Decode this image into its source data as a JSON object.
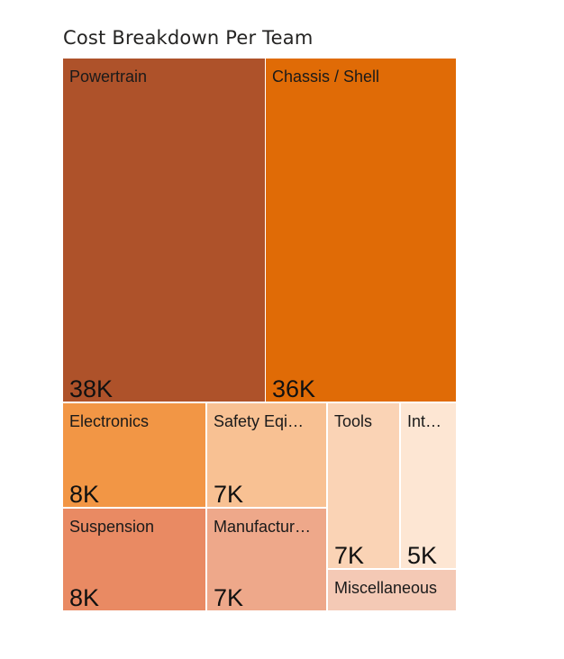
{
  "chart_data": {
    "type": "treemap",
    "title": "Cost Breakdown Per Team",
    "items": [
      {
        "name": "Powertrain",
        "label": "Powertrain",
        "value": 38000,
        "value_label": "38K",
        "color": "#ae522a"
      },
      {
        "name": "Chassis / Shell",
        "label": "Chassis / Shell",
        "value": 36000,
        "value_label": "36K",
        "color": "#e06b06"
      },
      {
        "name": "Electronics",
        "label": "Electronics",
        "value": 8000,
        "value_label": "8K",
        "color": "#f29645"
      },
      {
        "name": "Suspension",
        "label": "Suspension",
        "value": 8000,
        "value_label": "8K",
        "color": "#e98a63"
      },
      {
        "name": "Safety Equipment",
        "label": "Safety Eqi…",
        "value": 7000,
        "value_label": "7K",
        "color": "#f8c193"
      },
      {
        "name": "Manufacturing",
        "label": "Manufactur…",
        "value": 7000,
        "value_label": "7K",
        "color": "#eea88a"
      },
      {
        "name": "Tools",
        "label": "Tools",
        "value": 7000,
        "value_label": "7K",
        "color": "#fad3b5"
      },
      {
        "name": "Int…",
        "label": "Int…",
        "value": 5000,
        "value_label": "5K",
        "color": "#fde6d3"
      },
      {
        "name": "Miscellaneous",
        "label": "Miscellaneous",
        "value": null,
        "value_label": "",
        "color": "#f4c9b5"
      }
    ]
  }
}
